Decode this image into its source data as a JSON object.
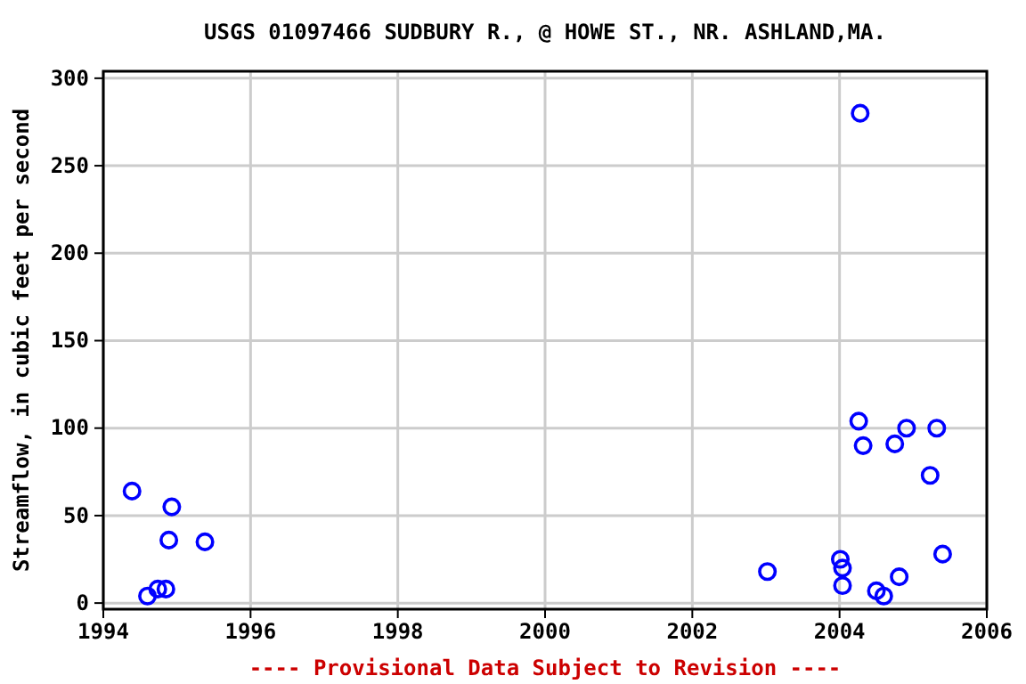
{
  "chart_data": {
    "type": "scatter",
    "title": "USGS 01097466 SUDBURY R., @ HOWE ST., NR. ASHLAND,MA.",
    "ylabel": "Streamflow, in cubic feet per second",
    "annotations": [
      "---- Provisional Data Subject to Revision ----"
    ],
    "x": [
      1994.39,
      1994.93,
      1994.89,
      1995.38,
      1994.6,
      1994.74,
      1994.85,
      2003.02,
      2004.01,
      2004.04,
      2004.04,
      2004.26,
      2004.28,
      2004.32,
      2004.5,
      2004.6,
      2004.75,
      2004.81,
      2004.91,
      2005.23,
      2005.32,
      2005.4
    ],
    "series": [
      {
        "color": "#0000ff",
        "values": [
          64,
          55,
          36,
          35,
          4,
          8,
          8,
          18,
          25,
          20,
          10,
          104,
          280,
          90,
          7,
          4,
          91,
          15,
          100,
          73,
          100,
          28
        ]
      }
    ],
    "xlim": [
      1994,
      2006
    ],
    "xticks": [
      1994,
      1996,
      1998,
      2000,
      2002,
      2004,
      2006
    ],
    "ylim": [
      -3.5,
      304
    ],
    "yticks": [
      0,
      50,
      100,
      150,
      200,
      250,
      300
    ],
    "grid": true,
    "marker": "circle"
  }
}
